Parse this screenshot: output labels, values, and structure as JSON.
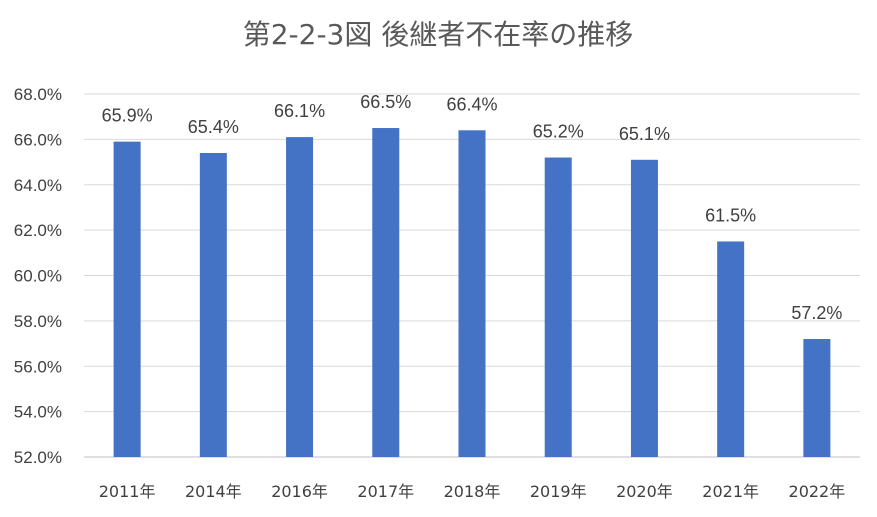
{
  "chart_data": {
    "type": "bar",
    "title": "第2-2-3図 後継者不在率の推移",
    "categories": [
      "2011年",
      "2014年",
      "2016年",
      "2017年",
      "2018年",
      "2019年",
      "2020年",
      "2021年",
      "2022年"
    ],
    "values": [
      65.9,
      65.4,
      66.1,
      66.5,
      66.4,
      65.2,
      65.1,
      61.5,
      57.2
    ],
    "value_labels": [
      "65.9%",
      "65.4%",
      "66.1%",
      "66.5%",
      "66.4%",
      "65.2%",
      "65.1%",
      "61.5%",
      "57.2%"
    ],
    "ylim": [
      52,
      68
    ],
    "yticks": [
      52,
      54,
      56,
      58,
      60,
      62,
      64,
      66,
      68
    ],
    "ytick_labels": [
      "52.0%",
      "54.0%",
      "56.0%",
      "58.0%",
      "60.0%",
      "62.0%",
      "64.0%",
      "66.0%",
      "68.0%"
    ],
    "xlabel": "",
    "ylabel": "",
    "grid": true,
    "legend": "none",
    "bar_color": "#4472C4"
  }
}
